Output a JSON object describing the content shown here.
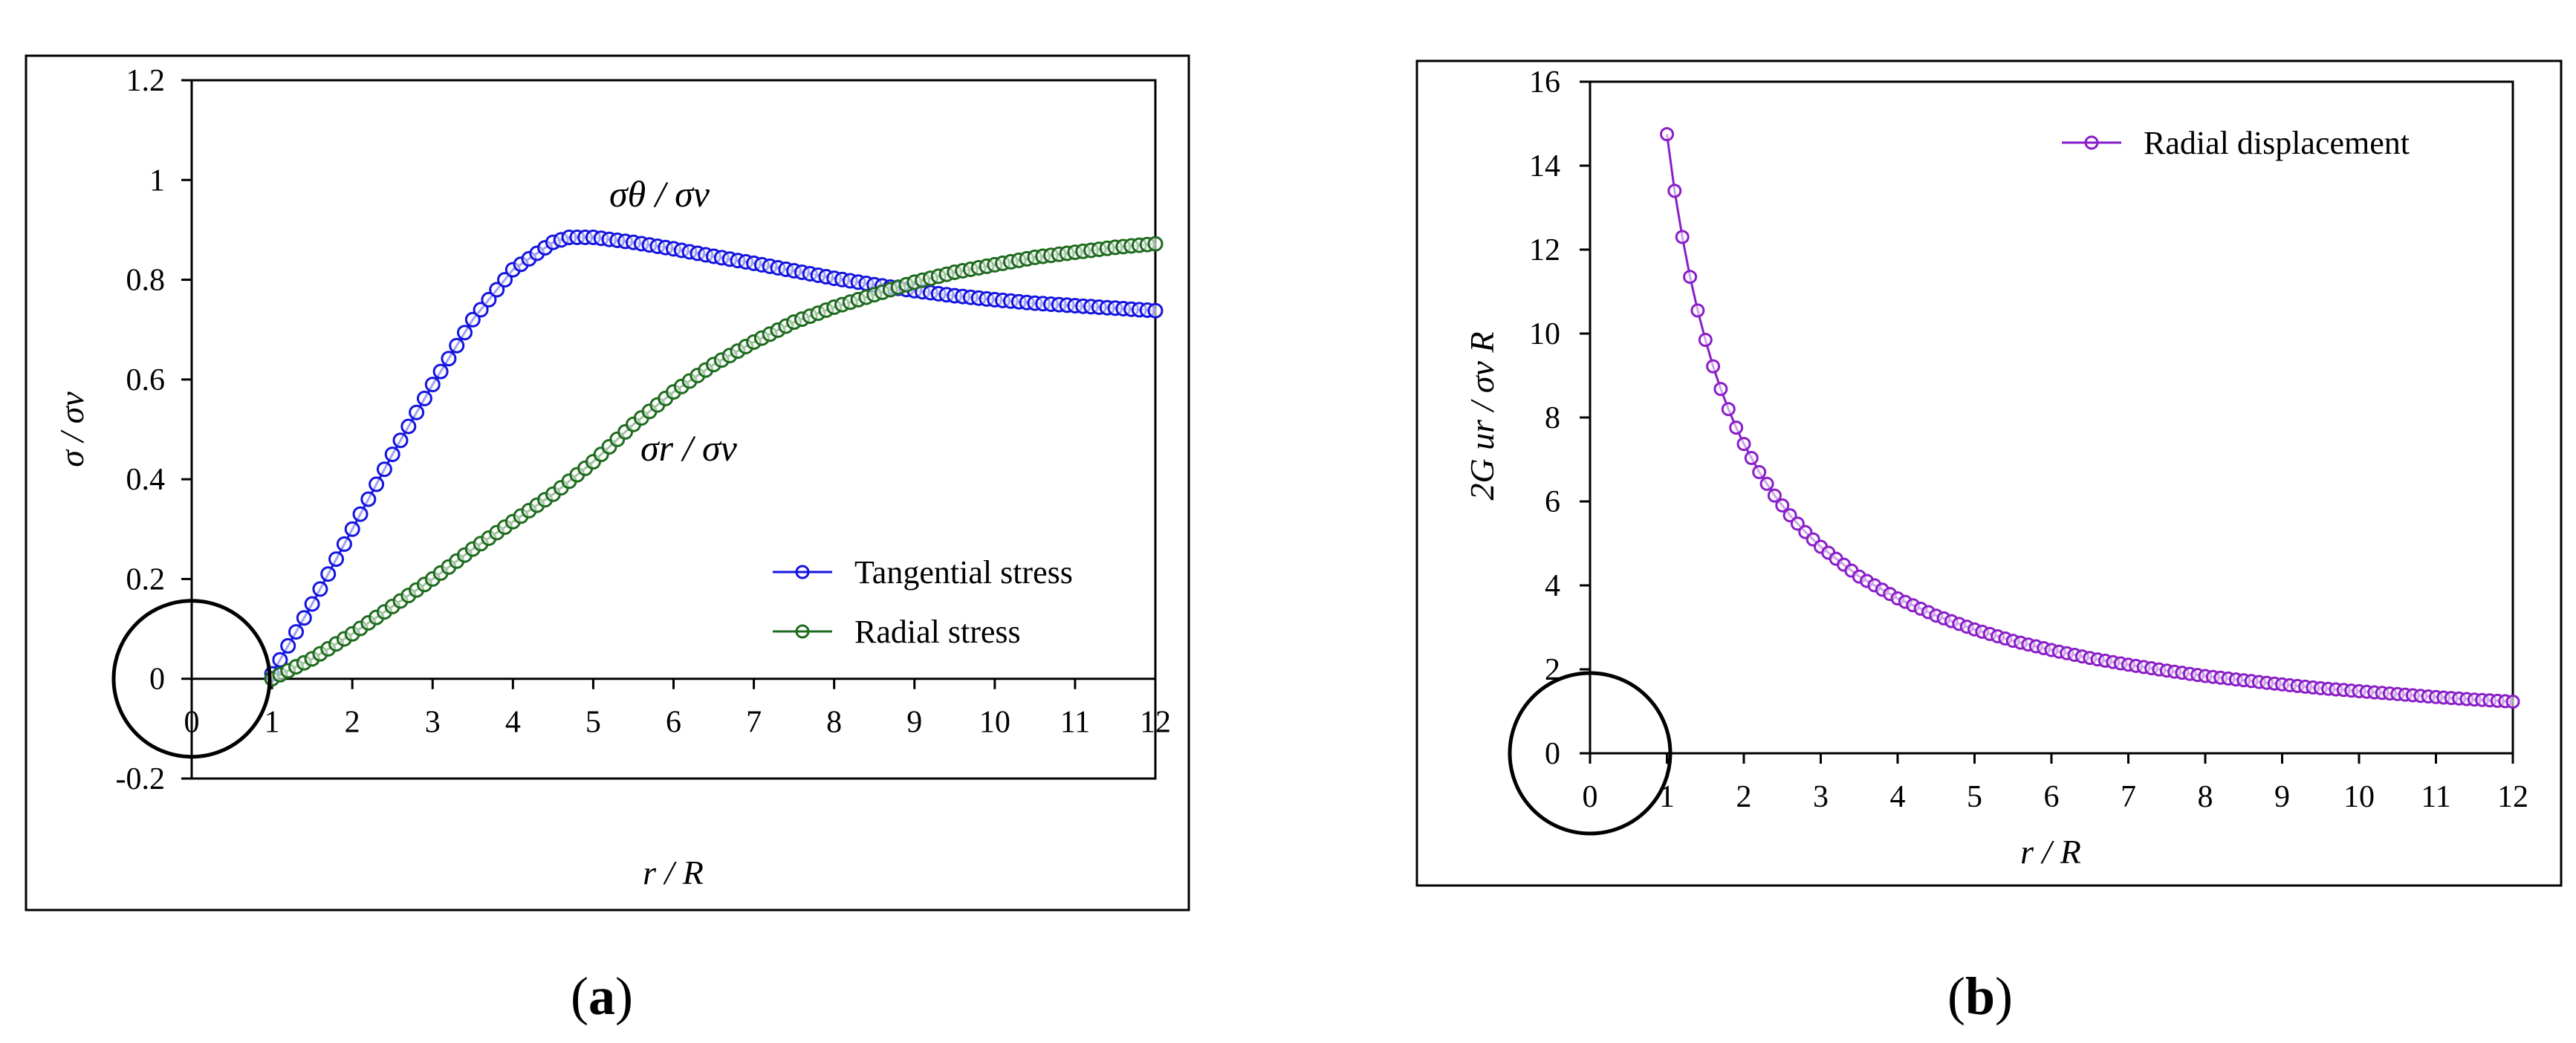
{
  "chart_data": [
    {
      "type": "line",
      "panel_label": {
        "open": "(",
        "letter": "a",
        "close": ")"
      },
      "title": "",
      "xlabel": "r  /  R",
      "ylabel": "σ  / σv",
      "xlim": [
        0,
        12
      ],
      "ylim": [
        -0.2,
        1.2
      ],
      "xticks": [
        "0",
        "1",
        "2",
        "3",
        "4",
        "5",
        "6",
        "7",
        "8",
        "9",
        "10",
        "11",
        "12"
      ],
      "yticks": [
        "-0.2",
        "0",
        "0.2",
        "0.4",
        "0.6",
        "0.8",
        "1",
        "1.2"
      ],
      "legend_position": "lower-right",
      "annotations": [
        {
          "text": "σθ  / σv",
          "near_x": 5.8,
          "near_y": 0.98
        },
        {
          "text": "σr  / σv",
          "near_x": 6.3,
          "near_y": 0.45
        }
      ],
      "highlight_circle": {
        "center_x": 0,
        "center_y": 0,
        "note": "circle around origin"
      },
      "series": [
        {
          "name": "Tangential stress",
          "color": "#1414e0",
          "x": [
            1,
            1.5,
            2,
            2.5,
            3,
            3.5,
            4,
            4.5,
            4.7,
            5,
            5.5,
            6,
            6.5,
            7,
            7.5,
            8,
            8.5,
            9,
            9.5,
            10,
            10.5,
            11,
            11.5,
            12
          ],
          "y": [
            0.01,
            0.15,
            0.3,
            0.45,
            0.59,
            0.72,
            0.82,
            0.875,
            0.885,
            0.885,
            0.875,
            0.862,
            0.847,
            0.833,
            0.818,
            0.803,
            0.79,
            0.778,
            0.768,
            0.76,
            0.753,
            0.748,
            0.743,
            0.738
          ]
        },
        {
          "name": "Radial stress",
          "color": "#1e6b1e",
          "x": [
            1,
            1.5,
            2,
            2.5,
            3,
            3.5,
            4,
            4.5,
            5,
            5.5,
            6,
            6.5,
            7,
            7.5,
            8,
            8.5,
            9,
            9.5,
            10,
            10.5,
            11,
            11.5,
            12
          ],
          "y": [
            0.0,
            0.04,
            0.09,
            0.145,
            0.2,
            0.26,
            0.315,
            0.37,
            0.435,
            0.51,
            0.575,
            0.63,
            0.675,
            0.715,
            0.745,
            0.77,
            0.795,
            0.815,
            0.83,
            0.845,
            0.855,
            0.865,
            0.872
          ]
        }
      ]
    },
    {
      "type": "line",
      "panel_label": {
        "open": "(",
        "letter": "b",
        "close": ")"
      },
      "title": "",
      "xlabel": "r  /  R",
      "ylabel": "2G ur / σv R",
      "xlim": [
        0,
        12
      ],
      "ylim": [
        0,
        16
      ],
      "xticks": [
        "0",
        "1",
        "2",
        "3",
        "4",
        "5",
        "6",
        "7",
        "8",
        "9",
        "10",
        "11",
        "12"
      ],
      "yticks": [
        "0",
        "2",
        "4",
        "6",
        "8",
        "10",
        "12",
        "14",
        "16"
      ],
      "legend_position": "top-right",
      "highlight_circle": {
        "center_x": 0,
        "center_y": 0,
        "note": "circle around origin"
      },
      "series": [
        {
          "name": "Radial displacement",
          "color": "#8a1ec8",
          "x": [
            1,
            1.1,
            1.2,
            1.3,
            1.4,
            1.5,
            1.6,
            1.7,
            1.8,
            1.9,
            2,
            2.2,
            2.4,
            2.6,
            2.8,
            3,
            3.5,
            4,
            4.5,
            5,
            5.5,
            6,
            6.5,
            7,
            7.5,
            8,
            8.5,
            9,
            9.5,
            10,
            10.5,
            11,
            11.5,
            12
          ],
          "y": [
            14.75,
            13.4,
            12.3,
            11.35,
            10.55,
            9.85,
            9.22,
            8.68,
            8.2,
            7.76,
            7.37,
            6.7,
            6.14,
            5.67,
            5.27,
            4.92,
            4.21,
            3.69,
            3.28,
            2.95,
            2.68,
            2.46,
            2.27,
            2.11,
            1.97,
            1.84,
            1.74,
            1.64,
            1.55,
            1.48,
            1.41,
            1.34,
            1.28,
            1.23
          ]
        }
      ]
    }
  ]
}
